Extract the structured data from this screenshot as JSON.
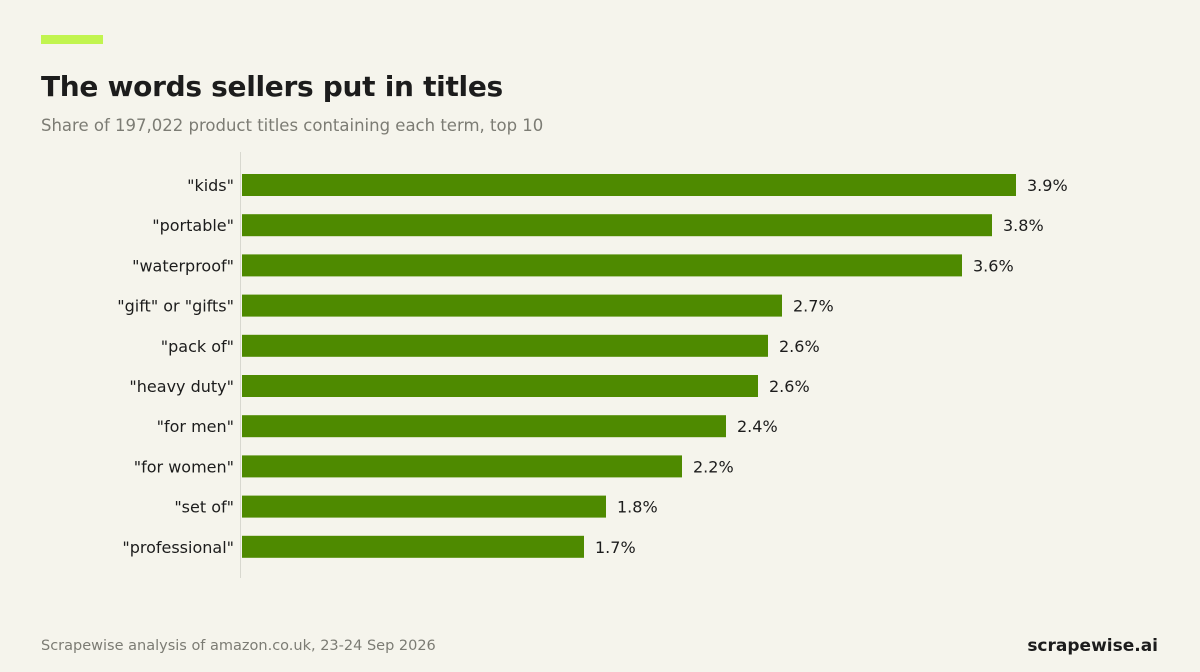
{
  "header": {
    "title": "The words sellers put in titles",
    "subtitle": "Share of 197,022 product titles containing each term, top 10"
  },
  "footer": {
    "source": "Scrapewise analysis of amazon.co.uk, 23-24 Sep 2026",
    "brand": "scrapewise.ai"
  },
  "colors": {
    "bar": "#4e8a00",
    "accent": "#c1f44f",
    "axis": "#d8d8cf",
    "background": "#f5f4ec"
  },
  "chart_data": {
    "type": "bar",
    "orientation": "horizontal",
    "title": "The words sellers put in titles",
    "subtitle": "Share of 197,022 product titles containing each term, top 10",
    "categories": [
      "\"kids\"",
      "\"portable\"",
      "\"waterproof\"",
      "\"gift\" or \"gifts\"",
      "\"pack of\"",
      "\"heavy duty\"",
      "\"for men\"",
      "\"for women\"",
      "\"set of\"",
      "\"professional\""
    ],
    "values": [
      3.87,
      3.75,
      3.6,
      2.7,
      2.63,
      2.58,
      2.42,
      2.2,
      1.82,
      1.71
    ],
    "value_labels": [
      "3.9%",
      "3.8%",
      "3.6%",
      "2.7%",
      "2.6%",
      "2.6%",
      "2.4%",
      "2.2%",
      "1.8%",
      "1.7%"
    ],
    "unit": "%",
    "xlim": [
      0,
      4.0
    ],
    "grid": false,
    "legend": "none"
  }
}
